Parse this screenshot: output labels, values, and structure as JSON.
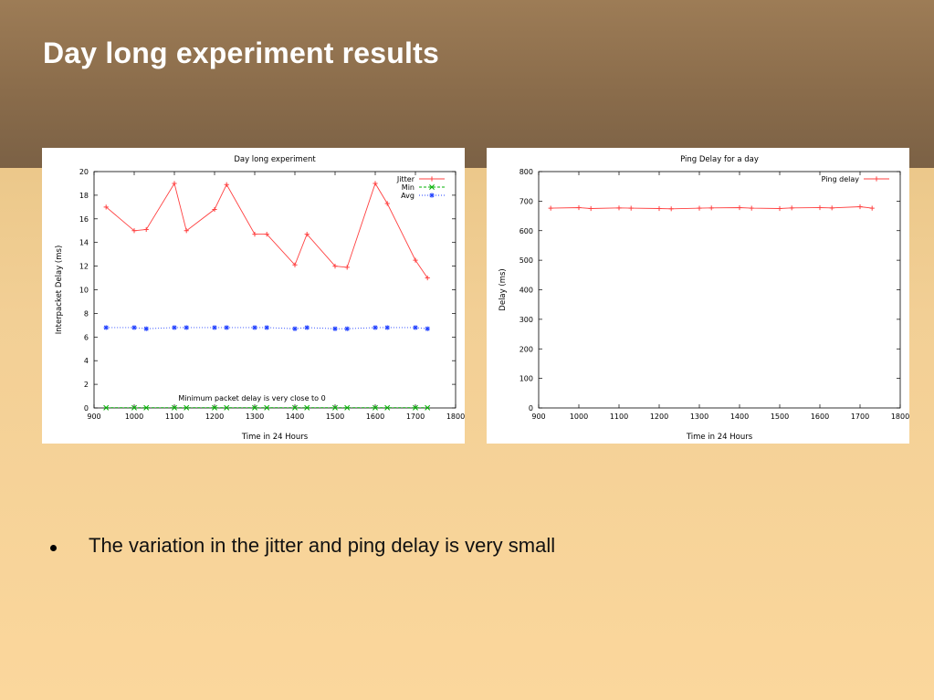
{
  "slide": {
    "title": "Day long experiment results",
    "bullets": [
      "The variation in the jitter and ping delay is very small"
    ],
    "colors": {
      "header": "#8a6c4b",
      "background": "#fbd79c",
      "title": "#ffffff"
    }
  },
  "chart_data": [
    {
      "type": "line",
      "title": "Day long experiment",
      "xlabel": "Time in 24 Hours",
      "ylabel": "Interpacket Delay (ms)",
      "xlim": [
        900,
        1800
      ],
      "ylim": [
        0,
        20
      ],
      "xticks": [
        "900",
        "1000",
        "1100",
        "1200",
        "1300",
        "1400",
        "1500",
        "1600",
        "1700",
        "1800"
      ],
      "yticks": [
        "0",
        "2",
        "4",
        "6",
        "8",
        "10",
        "12",
        "14",
        "16",
        "18",
        "20"
      ],
      "grid": false,
      "legend_position": "top-right",
      "annotation": "Minimum packet delay is very close to 0",
      "x": [
        930,
        1000,
        1030,
        1100,
        1130,
        1200,
        1230,
        1300,
        1330,
        1400,
        1430,
        1500,
        1530,
        1600,
        1630,
        1700,
        1730
      ],
      "series": [
        {
          "name": "Jitter",
          "color": "#ff4040",
          "marker": "+",
          "linestyle": "solid",
          "values": [
            17.0,
            15.0,
            15.1,
            19.0,
            15.0,
            16.8,
            18.9,
            14.7,
            14.7,
            12.1,
            14.7,
            12.0,
            11.9,
            19.0,
            17.3,
            12.5,
            11.0
          ]
        },
        {
          "name": "Min",
          "color": "#00b000",
          "marker": "x",
          "linestyle": "dashed",
          "values": [
            0.02,
            0.02,
            0.02,
            0.02,
            0.02,
            0.02,
            0.02,
            0.02,
            0.02,
            0.02,
            0.02,
            0.02,
            0.02,
            0.02,
            0.02,
            0.02,
            0.02
          ]
        },
        {
          "name": "Avg",
          "color": "#2040ff",
          "marker": "*",
          "linestyle": "dotted",
          "values": [
            6.8,
            6.8,
            6.7,
            6.8,
            6.8,
            6.8,
            6.8,
            6.8,
            6.8,
            6.7,
            6.8,
            6.7,
            6.7,
            6.8,
            6.8,
            6.8,
            6.7
          ]
        }
      ]
    },
    {
      "type": "line",
      "title": "Ping Delay for a day",
      "xlabel": "Time in 24 Hours",
      "ylabel": "Delay (ms)",
      "xlim": [
        900,
        1800
      ],
      "ylim": [
        0,
        800
      ],
      "xticks": [
        "900",
        "1000",
        "1100",
        "1200",
        "1300",
        "1400",
        "1500",
        "1600",
        "1700",
        "1800"
      ],
      "yticks": [
        "0",
        "100",
        "200",
        "300",
        "400",
        "500",
        "600",
        "700",
        "800"
      ],
      "grid": false,
      "legend_position": "top-right",
      "x": [
        930,
        1000,
        1030,
        1100,
        1130,
        1200,
        1230,
        1300,
        1330,
        1400,
        1430,
        1500,
        1530,
        1600,
        1630,
        1700,
        1730
      ],
      "series": [
        {
          "name": "Ping delay",
          "color": "#ff4040",
          "marker": "+",
          "linestyle": "solid",
          "values": [
            676,
            678,
            675,
            677,
            676,
            675,
            674,
            676,
            677,
            678,
            676,
            675,
            677,
            678,
            677,
            681,
            676
          ]
        }
      ]
    }
  ]
}
